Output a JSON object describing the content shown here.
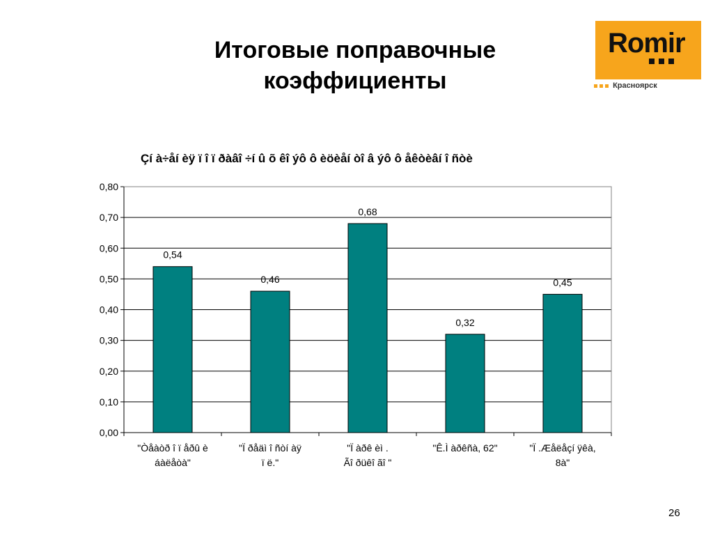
{
  "slide": {
    "title": "Итоговые поправочные\nкоэффициенты",
    "page_number": "26"
  },
  "logo": {
    "word": "Romir",
    "city": "Красноярск",
    "color": "#f7a51c"
  },
  "chart_data": {
    "type": "bar",
    "title": "Çí à÷åí èÿ ï î ï ðàâî ÷í û õ êî ýô ô èöèåí òî â ýô ô åêòèâí î ñòè",
    "categories": [
      [
        "\"Òåàòð î ï åðû  è",
        "áàëåòà\""
      ],
      [
        "\"Ï ðåäì î ñòí àÿ",
        "ï ë.\""
      ],
      [
        "\"Ï àðê èì  .",
        "Ãî ðüêî ãî \""
      ],
      [
        "\"Ê.Ì  àðêñà, 62\""
      ],
      [
        "\"Ï .Æåëåçí ÿêà,",
        "8à\""
      ]
    ],
    "values": [
      0.54,
      0.46,
      0.68,
      0.32,
      0.45
    ],
    "value_labels": [
      "0,54",
      "0,46",
      "0,68",
      "0,32",
      "0,45"
    ],
    "ylim": [
      0,
      0.8
    ],
    "yticks": [
      "0,00",
      "0,10",
      "0,20",
      "0,30",
      "0,40",
      "0,50",
      "0,60",
      "0,70",
      "0,80"
    ],
    "bar_color": "#008080",
    "grid": true,
    "xlabel": "",
    "ylabel": ""
  }
}
